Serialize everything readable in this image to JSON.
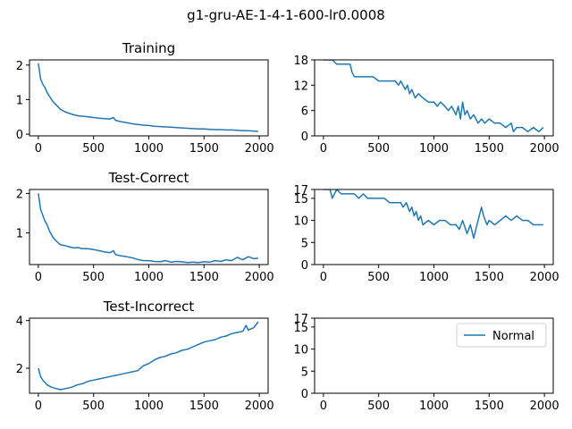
{
  "figure": {
    "suptitle": "g1-gru-AE-1-4-1-600-lr0.0008"
  },
  "colors": {
    "series": "#1f77b4",
    "axis": "#000000"
  },
  "chart_data": [
    {
      "id": "training-loss",
      "type": "line",
      "title": "Training",
      "xlim": [
        -80,
        2080
      ],
      "ylim": [
        -0.05,
        2.15
      ],
      "xticks": [
        0,
        500,
        1000,
        1500,
        2000
      ],
      "yticks": [
        0,
        1,
        2
      ],
      "series": [
        {
          "values_x": [
            0,
            20,
            40,
            60,
            80,
            100,
            130,
            160,
            200,
            240,
            280,
            320,
            360,
            400,
            450,
            500,
            550,
            600,
            650,
            680,
            700,
            720,
            750,
            800,
            850,
            900,
            950,
            1000,
            1050,
            1100,
            1150,
            1200,
            1250,
            1300,
            1350,
            1400,
            1450,
            1500,
            1550,
            1600,
            1650,
            1700,
            1750,
            1800,
            1850,
            1900,
            1950,
            1990
          ],
          "values_y": [
            2.05,
            1.6,
            1.45,
            1.35,
            1.2,
            1.1,
            0.95,
            0.85,
            0.72,
            0.65,
            0.6,
            0.56,
            0.53,
            0.52,
            0.5,
            0.48,
            0.46,
            0.45,
            0.44,
            0.48,
            0.4,
            0.38,
            0.36,
            0.33,
            0.3,
            0.28,
            0.26,
            0.25,
            0.23,
            0.22,
            0.21,
            0.2,
            0.19,
            0.18,
            0.17,
            0.16,
            0.15,
            0.15,
            0.14,
            0.13,
            0.13,
            0.12,
            0.12,
            0.11,
            0.1,
            0.1,
            0.09,
            0.08
          ]
        }
      ]
    },
    {
      "id": "training-metric",
      "type": "line",
      "title": "",
      "xlim": [
        -80,
        2080
      ],
      "ylim": [
        0,
        18
      ],
      "xticks": [
        0,
        500,
        1000,
        1500,
        2000
      ],
      "yticks": [
        0,
        6,
        12,
        18
      ],
      "series": [
        {
          "values_x": [
            0,
            40,
            60,
            80,
            120,
            160,
            200,
            240,
            260,
            280,
            300,
            400,
            450,
            500,
            550,
            600,
            650,
            680,
            700,
            720,
            740,
            760,
            780,
            800,
            830,
            860,
            900,
            950,
            1000,
            1030,
            1060,
            1100,
            1130,
            1160,
            1200,
            1220,
            1240,
            1260,
            1280,
            1300,
            1330,
            1360,
            1400,
            1430,
            1460,
            1500,
            1550,
            1600,
            1650,
            1700,
            1720,
            1750,
            1800,
            1850,
            1900,
            1950,
            1990
          ],
          "values_y": [
            18,
            18,
            18,
            18,
            17,
            17,
            17,
            17,
            15,
            14,
            14,
            14,
            14,
            13,
            13,
            13,
            13,
            12,
            13,
            12,
            11,
            12,
            10,
            11,
            9,
            10,
            9,
            8,
            8,
            7,
            8,
            7,
            6,
            7,
            5,
            7,
            4,
            8,
            5,
            6,
            4,
            5,
            3,
            4,
            3,
            4,
            3,
            3,
            2,
            3,
            1,
            2,
            2,
            1,
            2,
            1,
            2
          ]
        }
      ]
    },
    {
      "id": "test-correct-loss",
      "type": "line",
      "title": "Test-Correct",
      "xlim": [
        -80,
        2080
      ],
      "ylim": [
        0.2,
        2.1
      ],
      "xticks": [
        0,
        500,
        1000,
        1500,
        2000
      ],
      "yticks": [
        1,
        2
      ],
      "series": [
        {
          "values_x": [
            0,
            20,
            40,
            60,
            80,
            100,
            130,
            160,
            200,
            240,
            280,
            320,
            360,
            400,
            450,
            500,
            550,
            600,
            650,
            680,
            700,
            750,
            800,
            850,
            900,
            950,
            1000,
            1050,
            1100,
            1150,
            1200,
            1250,
            1300,
            1350,
            1400,
            1450,
            1500,
            1550,
            1600,
            1650,
            1700,
            1750,
            1800,
            1850,
            1900,
            1950,
            1990
          ],
          "values_y": [
            2.0,
            1.6,
            1.45,
            1.3,
            1.2,
            1.05,
            0.9,
            0.8,
            0.7,
            0.68,
            0.65,
            0.62,
            0.63,
            0.6,
            0.6,
            0.58,
            0.55,
            0.52,
            0.5,
            0.55,
            0.45,
            0.42,
            0.4,
            0.37,
            0.33,
            0.3,
            0.3,
            0.28,
            0.27,
            0.3,
            0.26,
            0.28,
            0.27,
            0.25,
            0.26,
            0.25,
            0.27,
            0.26,
            0.3,
            0.28,
            0.32,
            0.3,
            0.38,
            0.32,
            0.4,
            0.35,
            0.36
          ]
        }
      ]
    },
    {
      "id": "test-correct-metric",
      "type": "line",
      "title": "",
      "xlim": [
        -80,
        2080
      ],
      "ylim": [
        0,
        17
      ],
      "xticks": [
        0,
        500,
        1000,
        1500,
        2000
      ],
      "yticks": [
        0,
        5,
        10,
        15,
        17
      ],
      "series": [
        {
          "values_x": [
            0,
            40,
            60,
            80,
            120,
            160,
            200,
            240,
            280,
            320,
            360,
            400,
            450,
            500,
            550,
            600,
            650,
            700,
            720,
            750,
            780,
            800,
            820,
            840,
            860,
            880,
            900,
            950,
            1000,
            1050,
            1100,
            1150,
            1200,
            1230,
            1260,
            1300,
            1330,
            1360,
            1380,
            1400,
            1430,
            1450,
            1480,
            1500,
            1550,
            1600,
            1650,
            1700,
            1750,
            1800,
            1850,
            1900,
            1950,
            1990
          ],
          "values_y": [
            17,
            17,
            17,
            15,
            17,
            16,
            16,
            16,
            16,
            15,
            16,
            15,
            15,
            15,
            15,
            14,
            14,
            14,
            13,
            14,
            12,
            13,
            11,
            12,
            10,
            11,
            9,
            10,
            9,
            10,
            10,
            9,
            9,
            8,
            10,
            7,
            9,
            6,
            8,
            10,
            13,
            11,
            9,
            10,
            9,
            10,
            11,
            10,
            11,
            10,
            10,
            9,
            9,
            9
          ]
        }
      ]
    },
    {
      "id": "test-incorrect-loss",
      "type": "line",
      "title": "Test-Incorrect",
      "xlim": [
        -80,
        2080
      ],
      "ylim": [
        0.95,
        4.1
      ],
      "xticks": [
        0,
        500,
        1000,
        1500,
        2000
      ],
      "yticks": [
        2,
        4
      ],
      "series": [
        {
          "values_x": [
            0,
            20,
            40,
            60,
            80,
            120,
            160,
            200,
            250,
            300,
            350,
            400,
            450,
            500,
            550,
            600,
            650,
            700,
            750,
            800,
            850,
            900,
            950,
            1000,
            1050,
            1100,
            1150,
            1200,
            1250,
            1300,
            1350,
            1400,
            1450,
            1500,
            1550,
            1600,
            1650,
            1700,
            1750,
            1800,
            1850,
            1880,
            1900,
            1950,
            1990
          ],
          "values_y": [
            2.0,
            1.65,
            1.5,
            1.4,
            1.3,
            1.2,
            1.15,
            1.1,
            1.15,
            1.2,
            1.3,
            1.35,
            1.45,
            1.5,
            1.55,
            1.6,
            1.65,
            1.7,
            1.75,
            1.8,
            1.85,
            1.9,
            2.1,
            2.2,
            2.35,
            2.45,
            2.5,
            2.6,
            2.65,
            2.75,
            2.8,
            2.9,
            3.0,
            3.1,
            3.15,
            3.2,
            3.3,
            3.35,
            3.45,
            3.5,
            3.55,
            3.8,
            3.6,
            3.7,
            3.95
          ]
        }
      ]
    },
    {
      "id": "test-incorrect-metric",
      "type": "line",
      "title": "",
      "xlim": [
        -80,
        2080
      ],
      "ylim": [
        0,
        17
      ],
      "xticks": [
        0,
        500,
        1000,
        1500,
        2000
      ],
      "yticks": [
        0,
        5,
        10,
        15,
        17
      ],
      "legend": {
        "placement": "upper right",
        "entries": [
          {
            "label": "Normal"
          }
        ]
      },
      "series": []
    }
  ]
}
